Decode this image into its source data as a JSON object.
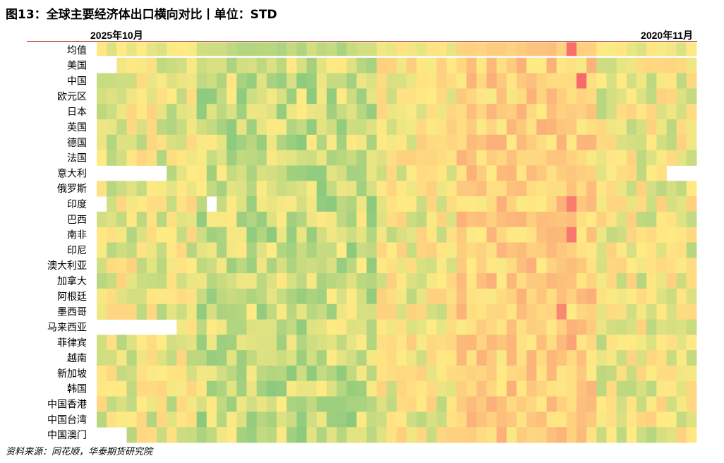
{
  "title": "图13：全球主要经济体出口横向对比丨单位：STD",
  "source": "资料来源：同花顺，华泰期货研究院",
  "chart_data": {
    "type": "heatmap",
    "x_start_label": "2025年10月",
    "x_end_label": "2020年11月",
    "rows": [
      "均值",
      "美国",
      "中国",
      "欧元区",
      "日本",
      "英国",
      "德国",
      "法国",
      "意大利",
      "俄罗斯",
      "印度",
      "巴西",
      "南非",
      "印尼",
      "澳大利亚",
      "加拿大",
      "阿根廷",
      "墨西哥",
      "马来西亚",
      "菲律宾",
      "越南",
      "新加坡",
      "韩国",
      "中国香港",
      "中国台湾",
      "中国澳门"
    ],
    "n_columns": 60,
    "colorscale": [
      "#f8696b",
      "#ffeb84",
      "#63be7b"
    ],
    "missing": {
      "美国": [
        0,
        1
      ],
      "意大利": [
        0,
        1,
        2,
        3,
        4,
        5,
        6,
        57,
        58,
        59
      ],
      "印度": [
        0,
        11
      ],
      "马来西亚": [
        0,
        1,
        2,
        3,
        4,
        5,
        6,
        7
      ],
      "中国澳门": [
        0,
        1,
        2
      ]
    },
    "highlights": {
      "均值": {
        "col": 47,
        "value": -2.5
      },
      "中国": {
        "col": 48,
        "value": -3.0
      },
      "印度": {
        "col": 47,
        "value": -2.2
      },
      "南非": {
        "col": 47,
        "value": -2.3
      },
      "墨西哥": {
        "col": 46,
        "value": -2.0
      },
      "菲律宾": {
        "col": 47,
        "value": -1.4
      }
    }
  }
}
